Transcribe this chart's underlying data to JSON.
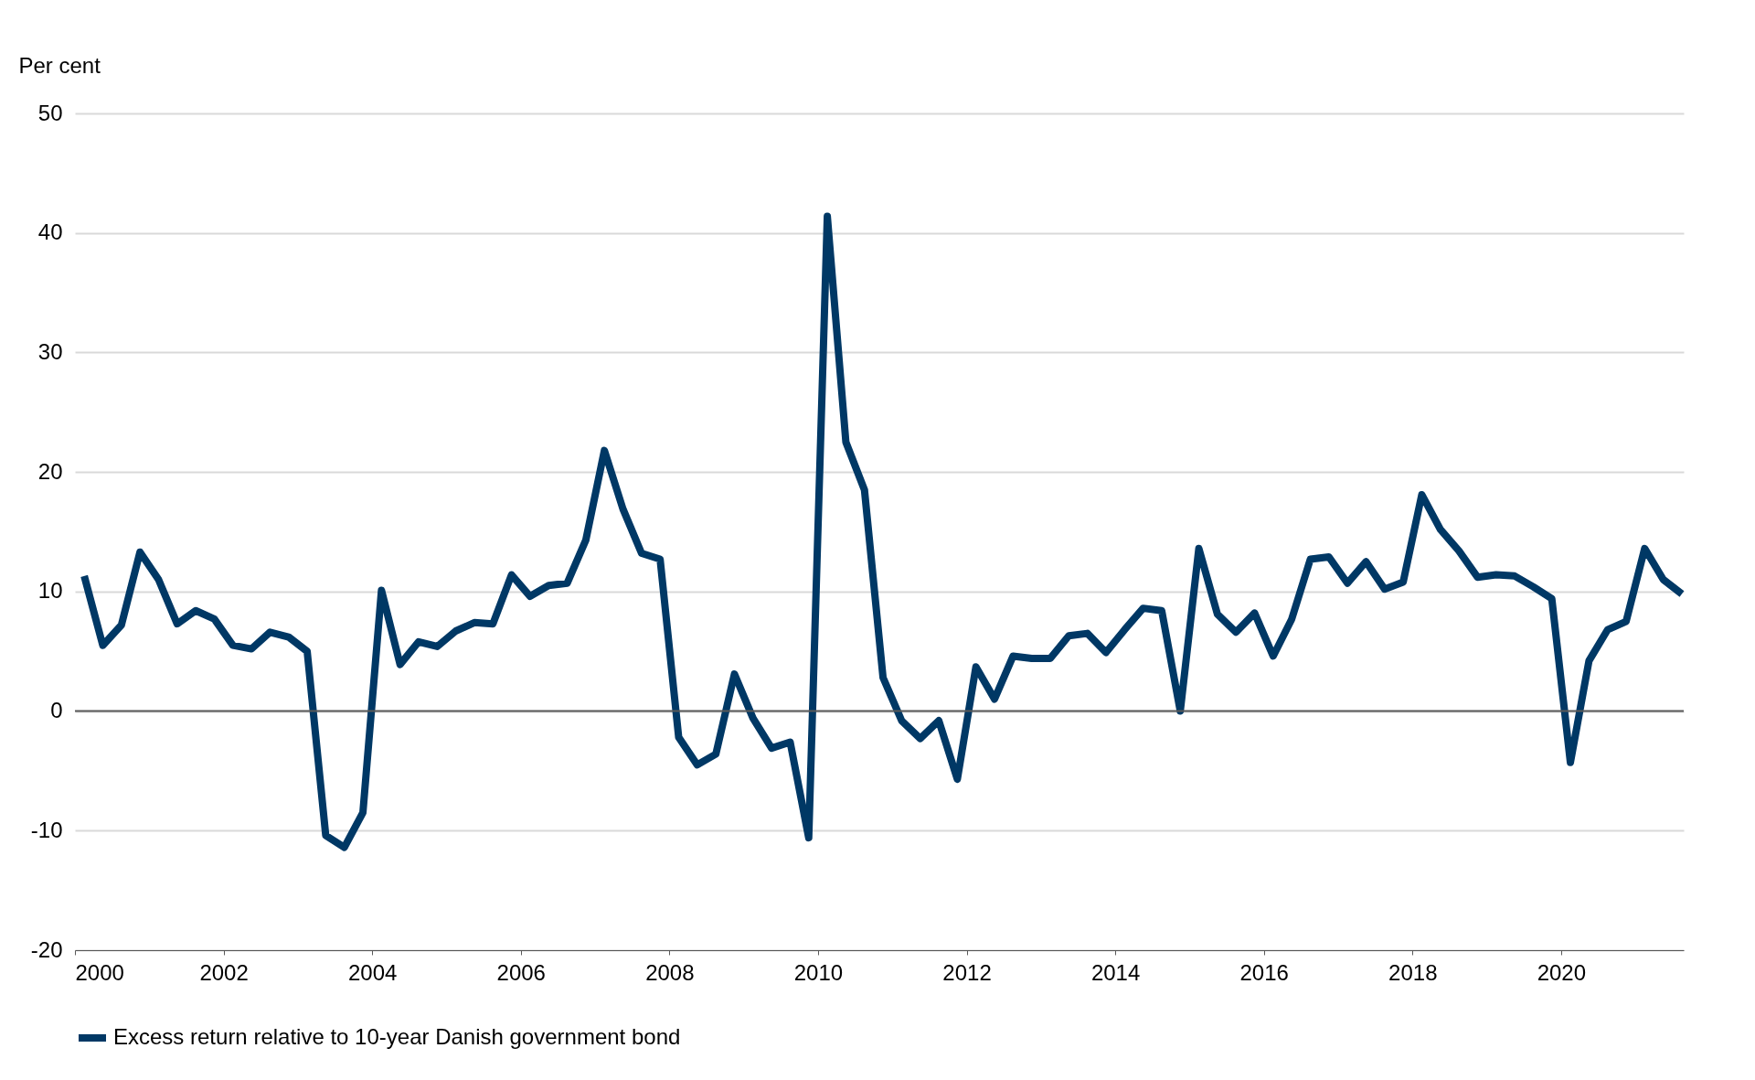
{
  "chart_data": {
    "type": "line",
    "ylabel": "Per cent",
    "x": [
      2000.125,
      2000.375,
      2000.625,
      2000.875,
      2001.125,
      2001.375,
      2001.625,
      2001.875,
      2002.125,
      2002.375,
      2002.625,
      2002.875,
      2003.125,
      2003.375,
      2003.625,
      2003.875,
      2004.125,
      2004.375,
      2004.625,
      2004.875,
      2005.125,
      2005.375,
      2005.625,
      2005.875,
      2006.125,
      2006.375,
      2006.625,
      2006.875,
      2007.125,
      2007.375,
      2007.625,
      2007.875,
      2008.125,
      2008.375,
      2008.625,
      2008.875,
      2009.125,
      2009.375,
      2009.625,
      2009.875,
      2010.125,
      2010.375,
      2010.625,
      2010.875,
      2011.125,
      2011.375,
      2011.625,
      2011.875,
      2012.125,
      2012.375,
      2012.625,
      2012.875,
      2013.125,
      2013.375,
      2013.625,
      2013.875,
      2014.125,
      2014.375,
      2014.625,
      2014.875,
      2015.125,
      2015.375,
      2015.625,
      2015.875,
      2016.125,
      2016.375,
      2016.625,
      2016.875,
      2017.125,
      2017.375,
      2017.625,
      2017.875,
      2018.125,
      2018.375,
      2018.625,
      2018.875,
      2019.125,
      2019.375,
      2019.625,
      2019.875,
      2020.125,
      2020.375,
      2020.625,
      2020.875,
      2021.125,
      2021.375,
      2021.625
    ],
    "series": [
      {
        "name": "Excess return relative to 10-year Danish government bond",
        "color": "#003865",
        "values": [
          11.3,
          5.5,
          7.2,
          13.3,
          11.0,
          7.3,
          8.4,
          7.7,
          5.5,
          5.2,
          6.6,
          6.2,
          5.0,
          -10.4,
          -11.4,
          -8.5,
          10.1,
          3.9,
          5.8,
          5.4,
          6.7,
          7.4,
          7.3,
          11.4,
          9.6,
          10.5,
          10.7,
          14.3,
          21.8,
          16.9,
          13.2,
          12.7,
          -2.2,
          -4.5,
          -3.6,
          3.1,
          -0.6,
          -3.1,
          -2.6,
          -10.6,
          41.4,
          22.5,
          18.5,
          2.8,
          -0.8,
          -2.3,
          -0.8,
          -5.7,
          3.7,
          1.0,
          4.6,
          4.4,
          4.4,
          6.3,
          6.5,
          4.9,
          6.8,
          8.6,
          8.4,
          0.0,
          13.6,
          8.1,
          6.6,
          8.2,
          4.6,
          7.7,
          12.7,
          12.9,
          10.7,
          12.5,
          10.2,
          10.8,
          18.1,
          15.2,
          13.4,
          11.2,
          11.4,
          11.3,
          10.4,
          9.4,
          -4.3,
          4.2,
          6.8,
          7.5,
          13.6,
          11.0,
          9.8
        ]
      }
    ],
    "xlim": [
      2000,
      2021.65
    ],
    "xticks": [
      2000,
      2002,
      2004,
      2006,
      2008,
      2010,
      2012,
      2014,
      2016,
      2018,
      2020
    ],
    "ylim": [
      -20,
      50
    ],
    "yticks": [
      -20,
      -10,
      0,
      10,
      20,
      30,
      40,
      50
    ],
    "ref_lines": [
      {
        "axis": "y",
        "value": 0,
        "color": "#595959"
      }
    ],
    "grid": "y",
    "legend": "bottom left",
    "line_style": "solid",
    "marker": "none"
  }
}
